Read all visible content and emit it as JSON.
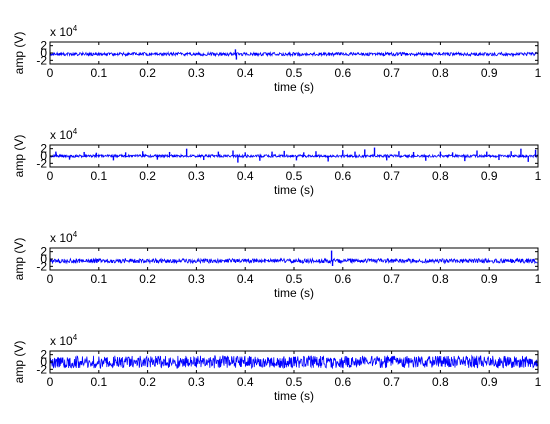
{
  "figure": {
    "background": "#ffffff",
    "signal_color": "#0000ff",
    "axis_color": "#000000"
  },
  "chart_data": [
    {
      "type": "line",
      "xlabel": "time (s)",
      "ylabel": "amp (V)",
      "y_exponent": {
        "base": "x 10",
        "power": "4"
      },
      "xlim": [
        0,
        1
      ],
      "ylim": [
        -3,
        3
      ],
      "x_ticks": [
        "0",
        "0.1",
        "0.2",
        "0.3",
        "0.4",
        "0.5",
        "0.6",
        "0.7",
        "0.8",
        "0.9",
        "1"
      ],
      "y_ticks": [
        "-2",
        "0",
        "2"
      ],
      "signal": {
        "kind": "noise",
        "baseline": -0.3,
        "noise_amplitude": 0.45,
        "spikes": [
          {
            "x": 0.38,
            "y": 1.0
          },
          {
            "x": 0.382,
            "y": -1.8
          }
        ]
      }
    },
    {
      "type": "line",
      "xlabel": "time (s)",
      "ylabel": "amp (V)",
      "y_exponent": {
        "base": "x 10",
        "power": "4"
      },
      "xlim": [
        0,
        1
      ],
      "ylim": [
        -3,
        3
      ],
      "x_ticks": [
        "0",
        "0.1",
        "0.2",
        "0.3",
        "0.4",
        "0.5",
        "0.6",
        "0.7",
        "0.8",
        "0.9",
        "1"
      ],
      "y_ticks": [
        "-2",
        "0",
        "2"
      ],
      "signal": {
        "kind": "noise",
        "baseline": 0.0,
        "noise_amplitude": 0.35,
        "spikes": [
          {
            "x": 0.012,
            "y": 1.2
          },
          {
            "x": 0.04,
            "y": -1.0
          },
          {
            "x": 0.07,
            "y": 1.1
          },
          {
            "x": 0.095,
            "y": 0.9
          },
          {
            "x": 0.13,
            "y": -1.2
          },
          {
            "x": 0.155,
            "y": 1.0
          },
          {
            "x": 0.19,
            "y": 1.3
          },
          {
            "x": 0.22,
            "y": -1.0
          },
          {
            "x": 0.245,
            "y": 1.1
          },
          {
            "x": 0.28,
            "y": 2.0
          },
          {
            "x": 0.315,
            "y": -1.1
          },
          {
            "x": 0.345,
            "y": 1.2
          },
          {
            "x": 0.375,
            "y": 1.5
          },
          {
            "x": 0.385,
            "y": -1.8
          },
          {
            "x": 0.4,
            "y": 1.0
          },
          {
            "x": 0.43,
            "y": -1.3
          },
          {
            "x": 0.455,
            "y": 1.2
          },
          {
            "x": 0.48,
            "y": 1.4
          },
          {
            "x": 0.505,
            "y": -1.2
          },
          {
            "x": 0.52,
            "y": 1.0
          },
          {
            "x": 0.545,
            "y": 1.3
          },
          {
            "x": 0.57,
            "y": -1.5
          },
          {
            "x": 0.6,
            "y": 1.6
          },
          {
            "x": 0.625,
            "y": 1.2
          },
          {
            "x": 0.645,
            "y": 1.8
          },
          {
            "x": 0.665,
            "y": 2.3
          },
          {
            "x": 0.69,
            "y": -1.2
          },
          {
            "x": 0.715,
            "y": 1.3
          },
          {
            "x": 0.745,
            "y": 1.1
          },
          {
            "x": 0.77,
            "y": -1.3
          },
          {
            "x": 0.8,
            "y": 1.2
          },
          {
            "x": 0.825,
            "y": 1.0
          },
          {
            "x": 0.85,
            "y": -1.4
          },
          {
            "x": 0.875,
            "y": 1.5
          },
          {
            "x": 0.895,
            "y": 1.2
          },
          {
            "x": 0.92,
            "y": -1.1
          },
          {
            "x": 0.945,
            "y": 1.3
          },
          {
            "x": 0.965,
            "y": 2.0
          },
          {
            "x": 0.98,
            "y": -1.6
          },
          {
            "x": 0.995,
            "y": 1.7
          }
        ]
      }
    },
    {
      "type": "line",
      "xlabel": "time (s)",
      "ylabel": "amp (V)",
      "y_exponent": {
        "base": "x 10",
        "power": "4"
      },
      "xlim": [
        0,
        1
      ],
      "ylim": [
        -3,
        3
      ],
      "x_ticks": [
        "0",
        "0.1",
        "0.2",
        "0.3",
        "0.4",
        "0.5",
        "0.6",
        "0.7",
        "0.8",
        "0.9",
        "1"
      ],
      "y_ticks": [
        "-2",
        "0",
        "2"
      ],
      "signal": {
        "kind": "noise",
        "baseline": -0.5,
        "noise_amplitude": 0.6,
        "spikes": [
          {
            "x": 0.577,
            "y": 2.3
          },
          {
            "x": 0.579,
            "y": -1.9
          }
        ]
      }
    },
    {
      "type": "line",
      "xlabel": "time (s)",
      "ylabel": "amp (V)",
      "y_exponent": {
        "base": "x 10",
        "power": "4"
      },
      "xlim": [
        0,
        1
      ],
      "ylim": [
        -3,
        3
      ],
      "x_ticks": [
        "0",
        "0.1",
        "0.2",
        "0.3",
        "0.4",
        "0.5",
        "0.6",
        "0.7",
        "0.8",
        "0.9",
        "1"
      ],
      "y_ticks": [
        "-2",
        "0",
        "2"
      ],
      "signal": {
        "kind": "noise",
        "baseline": 0.0,
        "noise_amplitude": 1.7,
        "spikes": []
      }
    }
  ]
}
